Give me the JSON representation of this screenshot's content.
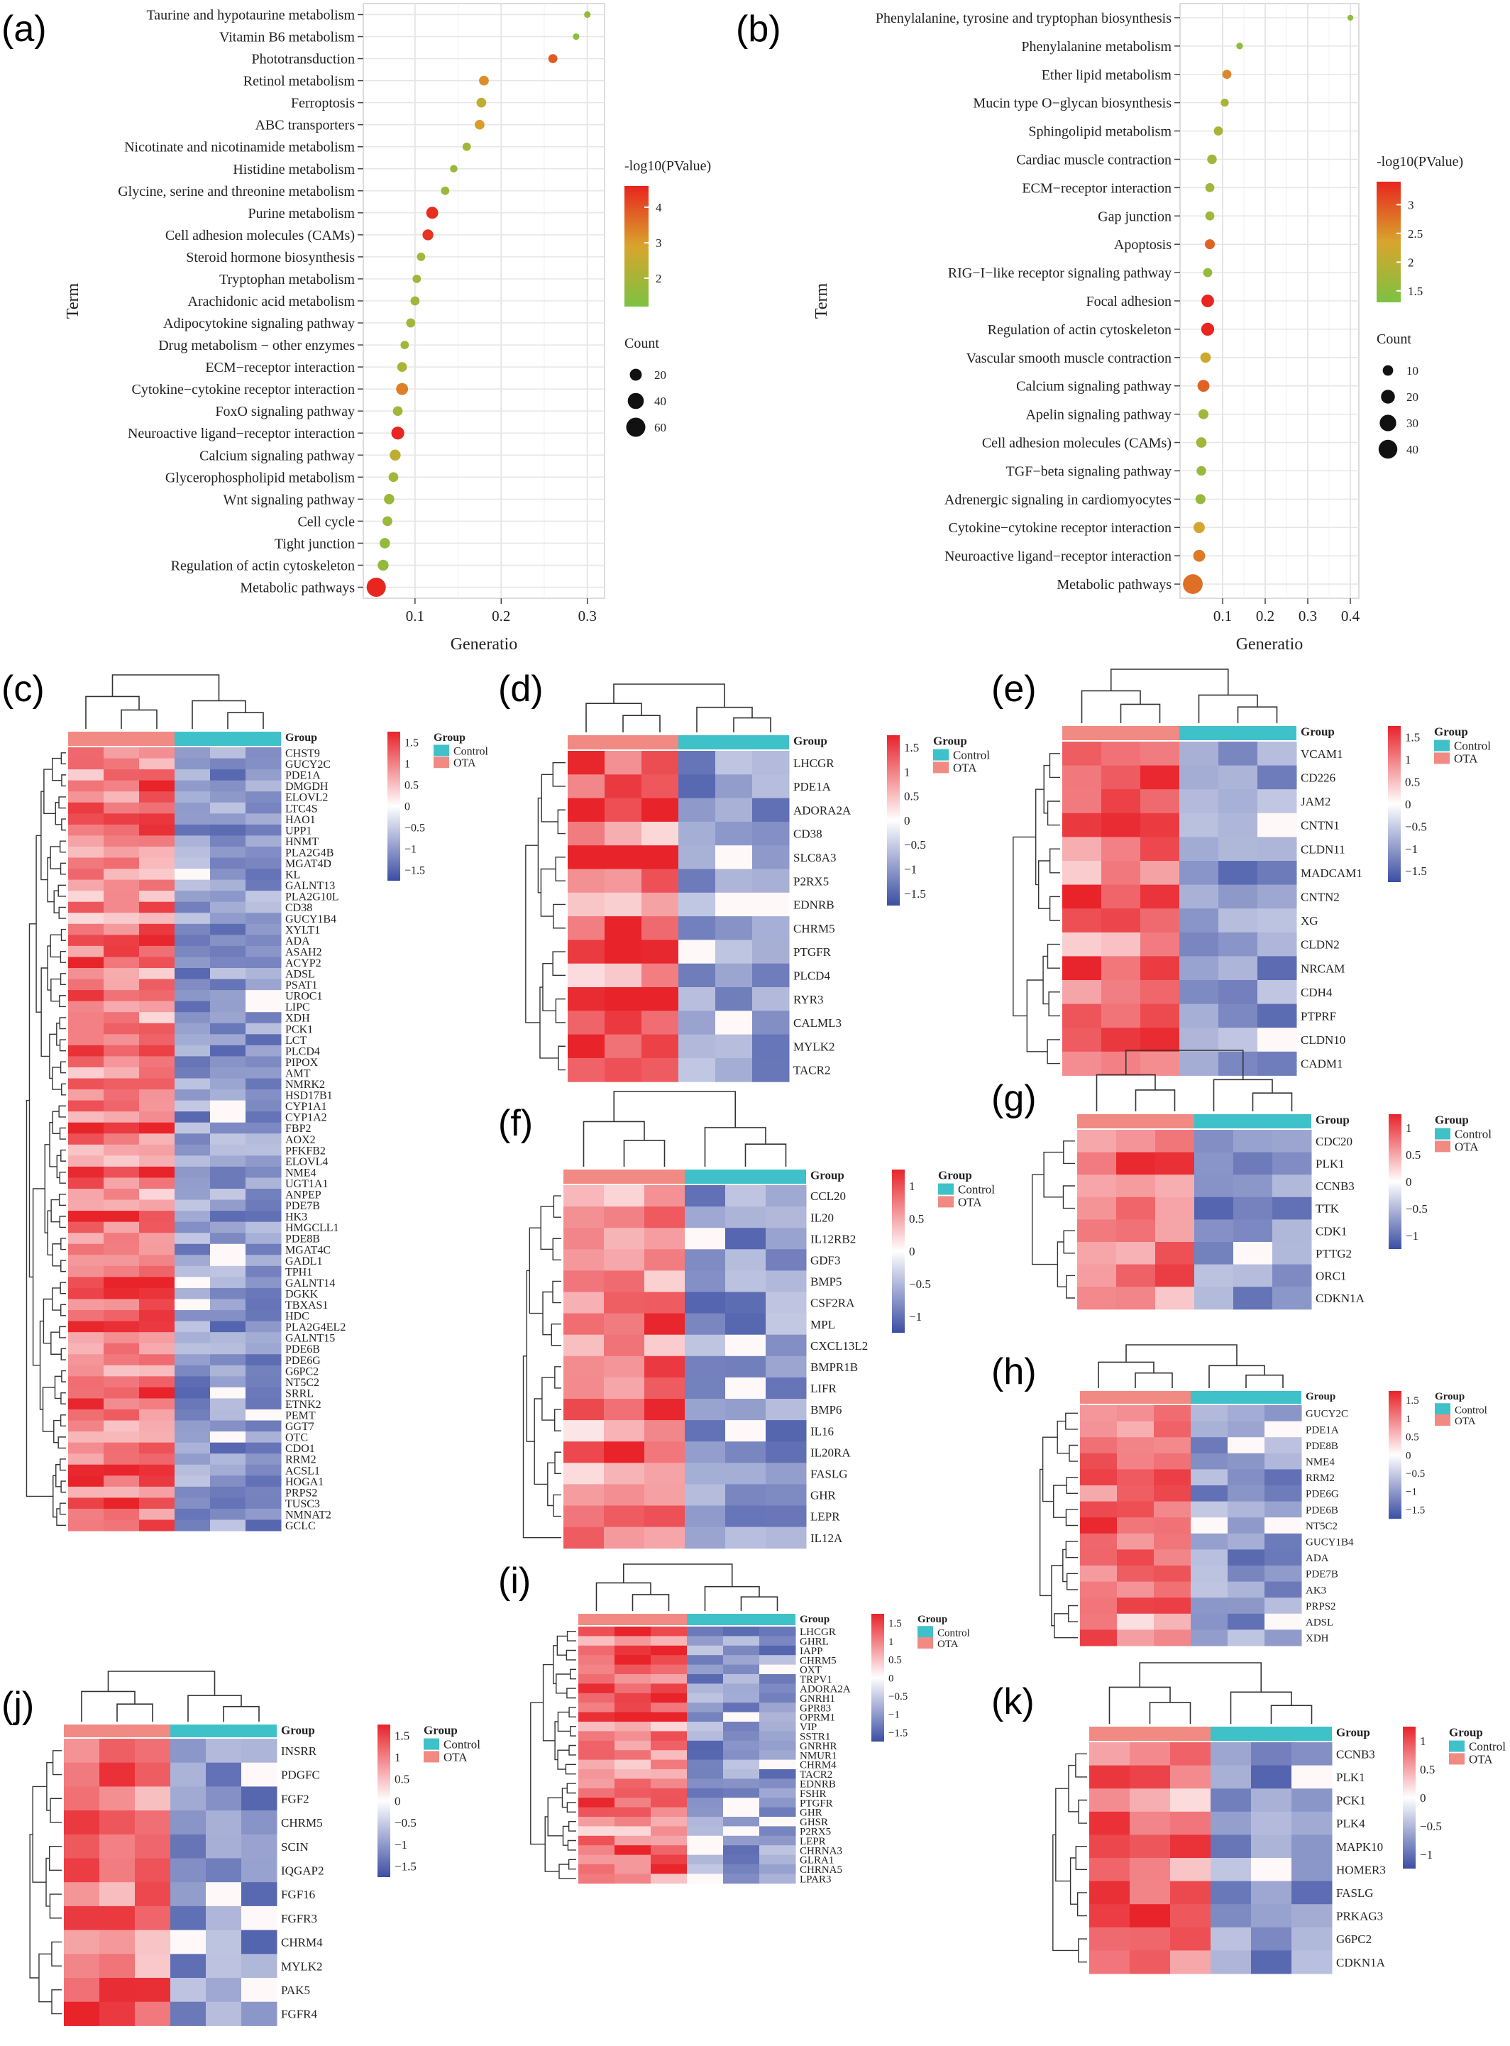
{
  "panel_labels": [
    "(a)",
    "(b)",
    "(c)",
    "(d)",
    "(e)",
    "(f)",
    "(g)",
    "(h)",
    "(i)",
    "(j)",
    "(k)"
  ],
  "chart_data": [
    {
      "type": "scatter",
      "panel": "(a)",
      "xlabel": "Generatio",
      "ylabel": "Term",
      "xlim": [
        0.04,
        0.32
      ],
      "xticks": [
        0.1,
        0.2,
        0.3
      ],
      "grid": true,
      "color_legend": {
        "title": "-log10(PValue)",
        "ticks": [
          2,
          3,
          4
        ],
        "range": [
          1.2,
          4.6
        ],
        "low_color": "#7cc242",
        "mid_color": "#d89a2c",
        "high_color": "#e8251f"
      },
      "size_legend": {
        "title": "Count",
        "values": [
          20,
          40,
          60
        ]
      },
      "terms": [
        "Taurine and hypotaurine metabolism",
        "Vitamin B6 metabolism",
        "Phototransduction",
        "Retinol metabolism",
        "Ferroptosis",
        "ABC transporters",
        "Nicotinate and nicotinamide metabolism",
        "Histidine metabolism",
        "Glycine, serine and threonine metabolism",
        "Purine metabolism",
        "Cell adhesion molecules (CAMs)",
        "Steroid hormone biosynthesis",
        "Tryptophan metabolism",
        "Arachidonic acid metabolism",
        "Adipocytokine signaling pathway",
        "Drug metabolism − other enzymes",
        "ECM−receptor interaction",
        "Cytokine−cytokine receptor interaction",
        "FoxO signaling pathway",
        "Neuroactive ligand−receptor interaction",
        "Calcium signaling pathway",
        "Glycerophospholipid metabolism",
        "Wnt signaling pathway",
        "Cell cycle",
        "Tight junction",
        "Regulation of actin cytoskeleton",
        "Metabolic pathways"
      ],
      "x": [
        0.3,
        0.287,
        0.26,
        0.18,
        0.177,
        0.175,
        0.16,
        0.145,
        0.135,
        0.12,
        0.115,
        0.107,
        0.102,
        0.1,
        0.095,
        0.088,
        0.085,
        0.085,
        0.08,
        0.08,
        0.077,
        0.075,
        0.07,
        0.068,
        0.065,
        0.063,
        0.055
      ],
      "pvalue_log": [
        1.7,
        1.4,
        3.9,
        3.2,
        2.5,
        3.0,
        1.9,
        1.8,
        1.8,
        4.5,
        4.4,
        1.9,
        1.8,
        1.8,
        1.9,
        1.9,
        2.0,
        3.4,
        1.9,
        4.6,
        2.4,
        1.9,
        1.8,
        1.8,
        1.6,
        1.6,
        4.6
      ],
      "count": [
        4,
        4,
        10,
        12,
        12,
        12,
        8,
        6,
        8,
        20,
        16,
        8,
        8,
        10,
        10,
        8,
        12,
        20,
        12,
        24,
        16,
        12,
        14,
        12,
        14,
        16,
        60
      ]
    },
    {
      "type": "scatter",
      "panel": "(b)",
      "xlabel": "Generatio",
      "ylabel": "Term",
      "xlim": [
        0.0,
        0.42
      ],
      "xticks": [
        0.1,
        0.2,
        0.3,
        0.4
      ],
      "grid": true,
      "color_legend": {
        "title": "-log10(PValue)",
        "ticks": [
          1.5,
          2.0,
          2.5,
          3.0
        ],
        "range": [
          1.3,
          3.4
        ],
        "low_color": "#7cc242",
        "mid_color": "#d89a2c",
        "high_color": "#e8251f"
      },
      "size_legend": {
        "title": "Count",
        "values": [
          10,
          20,
          30,
          40
        ]
      },
      "terms": [
        "Phenylalanine, tyrosine and tryptophan biosynthesis",
        "Phenylalanine metabolism",
        "Ether lipid metabolism",
        "Mucin type O−glycan biosynthesis",
        "Sphingolipid metabolism",
        "Cardiac muscle contraction",
        "ECM−receptor interaction",
        "Gap junction",
        "Apoptosis",
        "RIG−I−like receptor signaling pathway",
        "Focal adhesion",
        "Regulation of actin cytoskeleton",
        "Vascular smooth muscle contraction",
        "Calcium signaling pathway",
        "Apelin signaling pathway",
        "Cell adhesion molecules (CAMs)",
        "TGF−beta signaling pathway",
        "Adrenergic signaling in cardiomyocytes",
        "Cytokine−cytokine receptor interaction",
        "Neuroactive ligand−receptor interaction",
        "Metabolic pathways"
      ],
      "x": [
        0.4,
        0.14,
        0.11,
        0.105,
        0.09,
        0.075,
        0.07,
        0.07,
        0.07,
        0.065,
        0.065,
        0.065,
        0.06,
        0.055,
        0.055,
        0.05,
        0.05,
        0.048,
        0.045,
        0.045,
        0.03
      ],
      "pvalue_log": [
        1.5,
        1.5,
        2.6,
        1.8,
        1.8,
        1.7,
        1.7,
        1.7,
        2.9,
        1.6,
        3.4,
        3.4,
        2.2,
        2.9,
        1.7,
        1.7,
        1.6,
        1.6,
        2.3,
        2.7,
        2.8
      ],
      "count": [
        2,
        3,
        7,
        5,
        7,
        8,
        7,
        7,
        9,
        7,
        16,
        17,
        10,
        14,
        9,
        10,
        8,
        9,
        12,
        14,
        45
      ]
    },
    {
      "type": "heatmap",
      "panel": "(c)",
      "group_title": "Group",
      "groups": [
        "Control",
        "OTA"
      ],
      "colorbar_ticks": [
        "1.5",
        "1",
        "0.5",
        "0",
        "−0.5",
        "−1",
        "−1.5"
      ],
      "genes": [
        "CHST9",
        "GUCY2C",
        "PDE1A",
        "DMGDH",
        "ELOVL2",
        "LTC4S",
        "HAO1",
        "UPP1",
        "HNMT",
        "PLA2G4B",
        "MGAT4D",
        "KL",
        "GALNT13",
        "PLA2G10L",
        "CD38",
        "GUCY1B4",
        "XYLT1",
        "ADA",
        "ASAH2",
        "ACYP2",
        "ADSL",
        "PSAT1",
        "UROC1",
        "LIPC",
        "XDH",
        "PCK1",
        "LCT",
        "PLCD4",
        "PIPOX",
        "AMT",
        "NMRK2",
        "HSD17B1",
        "CYP1A1",
        "CYP1A2",
        "FBP2",
        "AOX2",
        "PFKFB2",
        "ELOVL4",
        "NME4",
        "UGT1A1",
        "ANPEP",
        "PDE7B",
        "HK3",
        "HMGCLL1",
        "PDE8B",
        "MGAT4C",
        "GADL1",
        "TPH1",
        "GALNT14",
        "DGKK",
        "TBXAS1",
        "HDC",
        "PLA2G4EL2",
        "GALNT15",
        "PDE6B",
        "PDE6G",
        "G6PC2",
        "NT5C2",
        "SRRL",
        "ETNK2",
        "PEMT",
        "GGT7",
        "OTC",
        "CDO1",
        "RRM2",
        "ACSL1",
        "HOGA1",
        "PRPS2",
        "TUSC3",
        "NMNAT2",
        "GCLC"
      ]
    },
    {
      "type": "heatmap",
      "panel": "(d)",
      "group_title": "Group",
      "groups": [
        "Control",
        "OTA"
      ],
      "colorbar_ticks": [
        "1.5",
        "1",
        "0.5",
        "0",
        "−0.5",
        "−1",
        "−1.5"
      ],
      "genes": [
        "LHCGR",
        "PDE1A",
        "ADORA2A",
        "CD38",
        "SLC8A3",
        "P2RX5",
        "EDNRB",
        "CHRM5",
        "PTGFR",
        "PLCD4",
        "RYR3",
        "CALML3",
        "MYLK2",
        "TACR2"
      ]
    },
    {
      "type": "heatmap",
      "panel": "(e)",
      "group_title": "Group",
      "groups": [
        "Control",
        "OTA"
      ],
      "colorbar_ticks": [
        "1.5",
        "1",
        "0.5",
        "0",
        "−0.5",
        "−1",
        "−1.5"
      ],
      "genes": [
        "VCAM1",
        "CD226",
        "JAM2",
        "CNTN1",
        "CLDN11",
        "MADCAM1",
        "CNTN2",
        "XG",
        "CLDN2",
        "NRCAM",
        "CDH4",
        "PTPRF",
        "CLDN10",
        "CADM1"
      ]
    },
    {
      "type": "heatmap",
      "panel": "(f)",
      "group_title": "Group",
      "groups": [
        "Control",
        "OTA"
      ],
      "colorbar_ticks": [
        "1",
        "0.5",
        "0",
        "−0.5",
        "−1"
      ],
      "genes": [
        "CCL20",
        "IL20",
        "IL12RB2",
        "GDF3",
        "BMP5",
        "CSF2RA",
        "MPL",
        "CXCL13L2",
        "BMPR1B",
        "LIFR",
        "BMP6",
        "IL16",
        "IL20RA",
        "FASLG",
        "GHR",
        "LEPR",
        "IL12A"
      ]
    },
    {
      "type": "heatmap",
      "panel": "(g)",
      "group_title": "Group",
      "groups": [
        "Control",
        "OTA"
      ],
      "colorbar_ticks": [
        "1",
        "0.5",
        "0",
        "−0.5",
        "−1"
      ],
      "genes": [
        "CDC20",
        "PLK1",
        "CCNB3",
        "TTK",
        "CDK1",
        "PTTG2",
        "ORC1",
        "CDKN1A"
      ]
    },
    {
      "type": "heatmap",
      "panel": "(h)",
      "group_title": "Group",
      "groups": [
        "Control",
        "OTA"
      ],
      "colorbar_ticks": [
        "1.5",
        "1",
        "0.5",
        "0",
        "−0.5",
        "−1",
        "−1.5"
      ],
      "genes": [
        "GUCY2C",
        "PDE1A",
        "PDE8B",
        "NME4",
        "RRM2",
        "PDE6G",
        "PDE6B",
        "NT5C2",
        "GUCY1B4",
        "ADA",
        "PDE7B",
        "AK3",
        "PRPS2",
        "ADSL",
        "XDH"
      ]
    },
    {
      "type": "heatmap",
      "panel": "(i)",
      "group_title": "Group",
      "groups": [
        "Control",
        "OTA"
      ],
      "colorbar_ticks": [
        "1.5",
        "1",
        "0.5",
        "0",
        "−0.5",
        "−1",
        "−1.5"
      ],
      "genes": [
        "LHCGR",
        "GHRL",
        "IAPP",
        "CHRM5",
        "OXT",
        "TRPV1",
        "ADORA2A",
        "GNRH1",
        "GPR83",
        "OPRM1",
        "VIP",
        "SSTR1",
        "GNRHR",
        "NMUR1",
        "CHRM4",
        "TACR2",
        "EDNRB",
        "FSHR",
        "PTGFR",
        "GHR",
        "GHSR",
        "P2RX5",
        "LEPR",
        "CHRNA3",
        "GLRA1",
        "CHRNA5",
        "LPAR3"
      ]
    },
    {
      "type": "heatmap",
      "panel": "(j)",
      "group_title": "Group",
      "groups": [
        "Control",
        "OTA"
      ],
      "colorbar_ticks": [
        "1.5",
        "1",
        "0.5",
        "0",
        "−0.5",
        "−1",
        "−1.5"
      ],
      "genes": [
        "INSRR",
        "PDGFC",
        "FGF2",
        "CHRM5",
        "SCIN",
        "IQGAP2",
        "FGF16",
        "FGFR3",
        "CHRM4",
        "MYLK2",
        "PAK5",
        "FGFR4"
      ]
    },
    {
      "type": "heatmap",
      "panel": "(k)",
      "group_title": "Group",
      "groups": [
        "Control",
        "OTA"
      ],
      "colorbar_ticks": [
        "1",
        "0.5",
        "0",
        "−0.5",
        "−1"
      ],
      "genes": [
        "CCNB3",
        "PLK1",
        "PCK1",
        "PLK4",
        "MAPK10",
        "HOMER3",
        "FASLG",
        "PRKAG3",
        "G6PC2",
        "CDKN1A"
      ]
    }
  ],
  "colors": {
    "control_bar": "#3fc1c9",
    "ota_bar": "#f08a82",
    "heat_high": "#e8232a",
    "heat_mid": "#ffffff",
    "heat_low": "#3b4ea3",
    "grid_bg": "#ffffff",
    "grid_line": "#e6e6e6"
  }
}
